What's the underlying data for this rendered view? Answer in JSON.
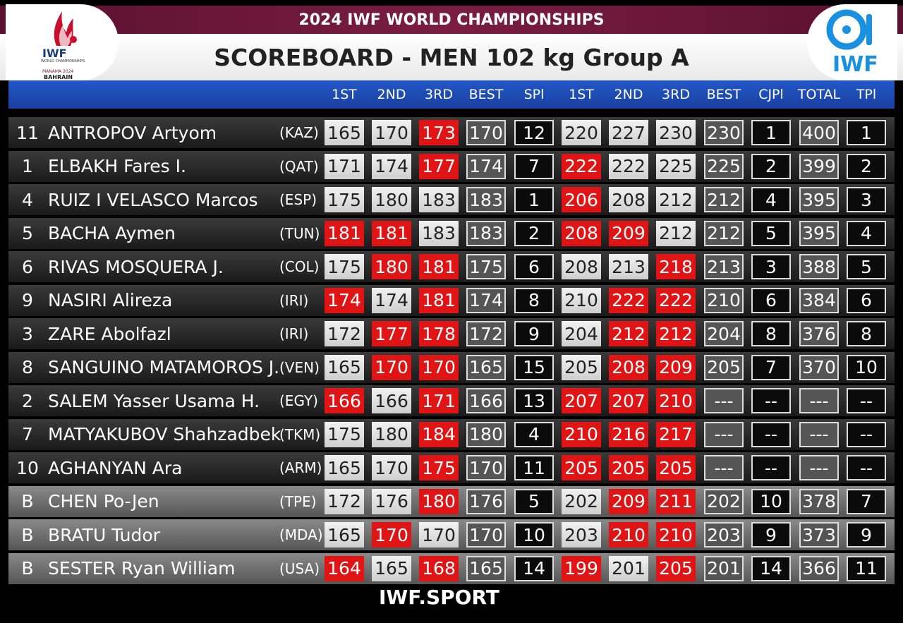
{
  "header": {
    "top_title": "2024 IWF WORLD CHAMPIONSHIPS",
    "main_title": "SCOREBOARD - MEN 102 kg Group A"
  },
  "logos": {
    "left": {
      "text": "IWF",
      "subtitle": "WORLD CHAMPIONSHIPS",
      "city": "MANAMA 2024",
      "country": "BAHRAIN"
    },
    "right": {
      "text": "IWF"
    }
  },
  "columns": [
    "1ST",
    "2ND",
    "3RD",
    "BEST",
    "SPl",
    "1ST",
    "2ND",
    "3RD",
    "BEST",
    "CJPl",
    "TOTAL",
    "TPl"
  ],
  "colors": {
    "fail": "#e01414",
    "good": "#e6e6e6",
    "blue_bar": "#1f4fbf",
    "title_bar": "#7a1c44"
  },
  "rows": [
    {
      "rank": "11",
      "name": "ANTROPOV Artyom",
      "nat": "(KAZ)",
      "group": "main",
      "sn": [
        {
          "v": "165",
          "ok": true
        },
        {
          "v": "170",
          "ok": true
        },
        {
          "v": "173",
          "ok": false
        }
      ],
      "sn_best": "170",
      "spl": "12",
      "cj": [
        {
          "v": "220",
          "ok": true
        },
        {
          "v": "227",
          "ok": true
        },
        {
          "v": "230",
          "ok": true
        }
      ],
      "cj_best": "230",
      "cjpl": "1",
      "total": "400",
      "tpl": "1"
    },
    {
      "rank": "1",
      "name": "ELBAKH Fares I.",
      "nat": "(QAT)",
      "group": "main",
      "sn": [
        {
          "v": "171",
          "ok": true
        },
        {
          "v": "174",
          "ok": true
        },
        {
          "v": "177",
          "ok": false
        }
      ],
      "sn_best": "174",
      "spl": "7",
      "cj": [
        {
          "v": "222",
          "ok": false
        },
        {
          "v": "222",
          "ok": true
        },
        {
          "v": "225",
          "ok": true
        }
      ],
      "cj_best": "225",
      "cjpl": "2",
      "total": "399",
      "tpl": "2"
    },
    {
      "rank": "4",
      "name": "RUIZ I VELASCO Marcos",
      "nat": "(ESP)",
      "group": "main",
      "sn": [
        {
          "v": "175",
          "ok": true
        },
        {
          "v": "180",
          "ok": true
        },
        {
          "v": "183",
          "ok": true
        }
      ],
      "sn_best": "183",
      "spl": "1",
      "cj": [
        {
          "v": "206",
          "ok": false
        },
        {
          "v": "208",
          "ok": true
        },
        {
          "v": "212",
          "ok": true
        }
      ],
      "cj_best": "212",
      "cjpl": "4",
      "total": "395",
      "tpl": "3"
    },
    {
      "rank": "5",
      "name": "BACHA Aymen",
      "nat": "(TUN)",
      "group": "main",
      "sn": [
        {
          "v": "181",
          "ok": false
        },
        {
          "v": "181",
          "ok": false
        },
        {
          "v": "183",
          "ok": true
        }
      ],
      "sn_best": "183",
      "spl": "2",
      "cj": [
        {
          "v": "208",
          "ok": false
        },
        {
          "v": "209",
          "ok": false
        },
        {
          "v": "212",
          "ok": true
        }
      ],
      "cj_best": "212",
      "cjpl": "5",
      "total": "395",
      "tpl": "4"
    },
    {
      "rank": "6",
      "name": "RIVAS MOSQUERA J.",
      "nat": "(COL)",
      "group": "main",
      "sn": [
        {
          "v": "175",
          "ok": true
        },
        {
          "v": "180",
          "ok": false
        },
        {
          "v": "181",
          "ok": false
        }
      ],
      "sn_best": "175",
      "spl": "6",
      "cj": [
        {
          "v": "208",
          "ok": true
        },
        {
          "v": "213",
          "ok": true
        },
        {
          "v": "218",
          "ok": false
        }
      ],
      "cj_best": "213",
      "cjpl": "3",
      "total": "388",
      "tpl": "5"
    },
    {
      "rank": "9",
      "name": "NASIRI Alireza",
      "nat": "(IRI)",
      "group": "main",
      "sn": [
        {
          "v": "174",
          "ok": false
        },
        {
          "v": "174",
          "ok": true
        },
        {
          "v": "181",
          "ok": false
        }
      ],
      "sn_best": "174",
      "spl": "8",
      "cj": [
        {
          "v": "210",
          "ok": true
        },
        {
          "v": "222",
          "ok": false
        },
        {
          "v": "222",
          "ok": false
        }
      ],
      "cj_best": "210",
      "cjpl": "6",
      "total": "384",
      "tpl": "6"
    },
    {
      "rank": "3",
      "name": "ZARE Abolfazl",
      "nat": "(IRI)",
      "group": "main",
      "sn": [
        {
          "v": "172",
          "ok": true
        },
        {
          "v": "177",
          "ok": false
        },
        {
          "v": "178",
          "ok": false
        }
      ],
      "sn_best": "172",
      "spl": "9",
      "cj": [
        {
          "v": "204",
          "ok": true
        },
        {
          "v": "212",
          "ok": false
        },
        {
          "v": "212",
          "ok": false
        }
      ],
      "cj_best": "204",
      "cjpl": "8",
      "total": "376",
      "tpl": "8"
    },
    {
      "rank": "8",
      "name": "SANGUINO MATAMOROS J.",
      "nat": "(VEN)",
      "group": "main",
      "sn": [
        {
          "v": "165",
          "ok": true
        },
        {
          "v": "170",
          "ok": false
        },
        {
          "v": "170",
          "ok": false
        }
      ],
      "sn_best": "165",
      "spl": "15",
      "cj": [
        {
          "v": "205",
          "ok": true
        },
        {
          "v": "208",
          "ok": false
        },
        {
          "v": "209",
          "ok": false
        }
      ],
      "cj_best": "205",
      "cjpl": "7",
      "total": "370",
      "tpl": "10"
    },
    {
      "rank": "2",
      "name": "SALEM Yasser Usama H.",
      "nat": "(EGY)",
      "group": "main",
      "sn": [
        {
          "v": "166",
          "ok": false
        },
        {
          "v": "166",
          "ok": true
        },
        {
          "v": "171",
          "ok": false
        }
      ],
      "sn_best": "166",
      "spl": "13",
      "cj": [
        {
          "v": "207",
          "ok": false
        },
        {
          "v": "207",
          "ok": false
        },
        {
          "v": "210",
          "ok": false
        }
      ],
      "cj_best": "---",
      "cjpl": "--",
      "total": "---",
      "tpl": "--"
    },
    {
      "rank": "7",
      "name": "MATYAKUBOV Shahzadbek",
      "nat": "(TKM)",
      "group": "main",
      "sn": [
        {
          "v": "175",
          "ok": true
        },
        {
          "v": "180",
          "ok": true
        },
        {
          "v": "184",
          "ok": false
        }
      ],
      "sn_best": "180",
      "spl": "4",
      "cj": [
        {
          "v": "210",
          "ok": false
        },
        {
          "v": "216",
          "ok": false
        },
        {
          "v": "217",
          "ok": false
        }
      ],
      "cj_best": "---",
      "cjpl": "--",
      "total": "---",
      "tpl": "--"
    },
    {
      "rank": "10",
      "name": "AGHANYAN Ara",
      "nat": "(ARM)",
      "group": "main",
      "sn": [
        {
          "v": "165",
          "ok": true
        },
        {
          "v": "170",
          "ok": true
        },
        {
          "v": "175",
          "ok": false
        }
      ],
      "sn_best": "170",
      "spl": "11",
      "cj": [
        {
          "v": "205",
          "ok": false
        },
        {
          "v": "205",
          "ok": false
        },
        {
          "v": "205",
          "ok": false
        }
      ],
      "cj_best": "---",
      "cjpl": "--",
      "total": "---",
      "tpl": "--"
    },
    {
      "rank": "B",
      "name": "CHEN Po-Jen",
      "nat": "(TPE)",
      "group": "b",
      "sn": [
        {
          "v": "172",
          "ok": true
        },
        {
          "v": "176",
          "ok": true
        },
        {
          "v": "180",
          "ok": false
        }
      ],
      "sn_best": "176",
      "spl": "5",
      "cj": [
        {
          "v": "202",
          "ok": true
        },
        {
          "v": "209",
          "ok": false
        },
        {
          "v": "211",
          "ok": false
        }
      ],
      "cj_best": "202",
      "cjpl": "10",
      "total": "378",
      "tpl": "7"
    },
    {
      "rank": "B",
      "name": "BRATU Tudor",
      "nat": "(MDA)",
      "group": "b",
      "sn": [
        {
          "v": "165",
          "ok": true
        },
        {
          "v": "170",
          "ok": false
        },
        {
          "v": "170",
          "ok": true
        }
      ],
      "sn_best": "170",
      "spl": "10",
      "cj": [
        {
          "v": "203",
          "ok": true
        },
        {
          "v": "210",
          "ok": false
        },
        {
          "v": "210",
          "ok": false
        }
      ],
      "cj_best": "203",
      "cjpl": "9",
      "total": "373",
      "tpl": "9"
    },
    {
      "rank": "B",
      "name": "SESTER Ryan William",
      "nat": "(USA)",
      "group": "b",
      "sn": [
        {
          "v": "164",
          "ok": false
        },
        {
          "v": "165",
          "ok": true
        },
        {
          "v": "168",
          "ok": false
        }
      ],
      "sn_best": "165",
      "spl": "14",
      "cj": [
        {
          "v": "199",
          "ok": false
        },
        {
          "v": "201",
          "ok": true
        },
        {
          "v": "205",
          "ok": false
        }
      ],
      "cj_best": "201",
      "cjpl": "14",
      "total": "366",
      "tpl": "11"
    }
  ],
  "footer": "IWF.SPORT"
}
